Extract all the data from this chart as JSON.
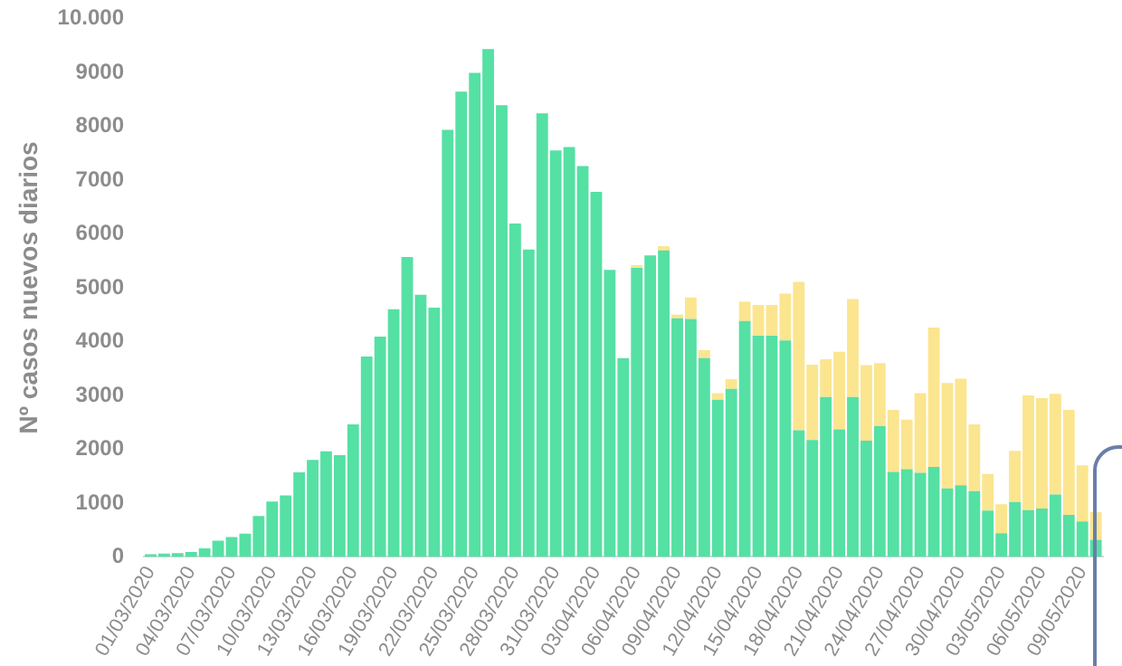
{
  "chart_data": {
    "type": "bar",
    "stacked": true,
    "ylabel": "Nº casos nuevos diarios",
    "categories": [
      "01/03/2020",
      null,
      null,
      "04/03/2020",
      null,
      null,
      "07/03/2020",
      null,
      null,
      "10/03/2020",
      null,
      null,
      "13/03/2020",
      null,
      null,
      "16/03/2020",
      null,
      null,
      "19/03/2020",
      null,
      null,
      "22/03/2020",
      null,
      null,
      "25/03/2020",
      null,
      null,
      "28/03/2020",
      null,
      null,
      "31/03/2020",
      null,
      null,
      "03/04/2020",
      null,
      null,
      "06/04/2020",
      null,
      null,
      "09/04/2020",
      null,
      null,
      "12/04/2020",
      null,
      null,
      "15/04/2020",
      null,
      null,
      "18/04/2020",
      null,
      null,
      "21/04/2020",
      null,
      null,
      "24/04/2020",
      null,
      null,
      "27/04/2020",
      null,
      null,
      "30/04/2020",
      null,
      null,
      "03/05/2020",
      null,
      null,
      "06/05/2020",
      null,
      null,
      "09/05/2020",
      null
    ],
    "series": [
      {
        "color": "#55e0a4",
        "values": [
          50,
          60,
          70,
          90,
          160,
          300,
          370,
          430,
          760,
          1030,
          1140,
          1570,
          1800,
          1960,
          1890,
          2460,
          3720,
          4090,
          4600,
          5570,
          4870,
          4630,
          7930,
          8640,
          8990,
          9430,
          8390,
          6190,
          5710,
          8240,
          7550,
          7610,
          7260,
          6780,
          5330,
          3690,
          5370,
          5600,
          5690,
          4430,
          4420,
          3690,
          2920,
          3120,
          4380,
          4110,
          4110,
          4020,
          2350,
          2170,
          2970,
          2370,
          2970,
          2160,
          2430,
          1580,
          1630,
          1560,
          1670,
          1270,
          1330,
          1220,
          860,
          440,
          1020,
          870,
          900,
          1160,
          780,
          660,
          320
        ]
      },
      {
        "color": "#fbe58f",
        "values": [
          0,
          0,
          0,
          0,
          0,
          0,
          0,
          0,
          0,
          0,
          0,
          0,
          0,
          0,
          0,
          0,
          0,
          0,
          0,
          0,
          0,
          0,
          0,
          0,
          0,
          0,
          0,
          0,
          0,
          0,
          0,
          0,
          0,
          0,
          0,
          0,
          50,
          0,
          80,
          70,
          400,
          150,
          120,
          180,
          360,
          570,
          570,
          870,
          2760,
          1400,
          700,
          1440,
          1820,
          1400,
          1170,
          1150,
          920,
          1480,
          2590,
          1960,
          1980,
          1240,
          680,
          540,
          950,
          2130,
          2050,
          1870,
          1950,
          1040,
          510
        ]
      }
    ],
    "ylim": [
      0,
      10000
    ],
    "yticks": [
      0,
      1000,
      2000,
      3000,
      4000,
      5000,
      6000,
      7000,
      8000,
      9000,
      {
        "value": 10000,
        "label": "10.000"
      }
    ],
    "grid": false,
    "legend": false
  }
}
